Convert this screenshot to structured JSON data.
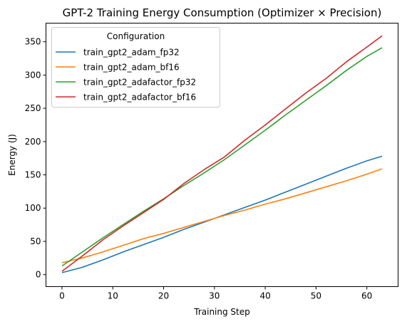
{
  "chart_data": {
    "type": "line",
    "title": "GPT-2 Training Energy Consumption (Optimizer × Precision)",
    "xlabel": "Training Step",
    "ylabel": "Energy (J)",
    "xlim": [
      -3.15,
      66.15
    ],
    "ylim": [
      -18,
      378
    ],
    "xticks": [
      0,
      10,
      20,
      30,
      40,
      50,
      60
    ],
    "yticks": [
      0,
      50,
      100,
      150,
      200,
      250,
      300,
      350
    ],
    "grid": false,
    "legend": {
      "title": "Configuration",
      "placement": "upper-left"
    },
    "series": [
      {
        "name": "train_gpt2_adam_fp32",
        "color": "#1f77b4",
        "x": [
          0,
          4,
          8,
          12,
          16,
          20,
          24,
          28,
          32,
          36,
          40,
          44,
          48,
          52,
          56,
          60,
          63
        ],
        "y": [
          3,
          11,
          22,
          34,
          45,
          56,
          68,
          79,
          90,
          101,
          112,
          124,
          136,
          148,
          160,
          171,
          178
        ]
      },
      {
        "name": "train_gpt2_adam_bf16",
        "color": "#ff7f0e",
        "x": [
          0,
          4,
          8,
          12,
          16,
          20,
          24,
          28,
          32,
          36,
          40,
          44,
          48,
          52,
          56,
          60,
          63
        ],
        "y": [
          18,
          25,
          34,
          44,
          54,
          62,
          71,
          80,
          89,
          97,
          106,
          114,
          123,
          132,
          141,
          151,
          159
        ]
      },
      {
        "name": "train_gpt2_adafactor_fp32",
        "color": "#2ca02c",
        "x": [
          0,
          4,
          8,
          12,
          16,
          20,
          24,
          28,
          32,
          36,
          40,
          44,
          48,
          52,
          56,
          60,
          63
        ],
        "y": [
          13,
          34,
          55,
          75,
          95,
          114,
          134,
          153,
          173,
          195,
          217,
          240,
          262,
          284,
          307,
          328,
          341
        ]
      },
      {
        "name": "train_gpt2_adafactor_bf16",
        "color": "#d62728",
        "x": [
          0,
          4,
          8,
          12,
          16,
          20,
          24,
          28,
          32,
          36,
          40,
          44,
          48,
          52,
          56,
          60,
          63
        ],
        "y": [
          5,
          28,
          52,
          73,
          93,
          113,
          137,
          158,
          177,
          202,
          225,
          249,
          273,
          295,
          320,
          342,
          359
        ]
      }
    ]
  }
}
